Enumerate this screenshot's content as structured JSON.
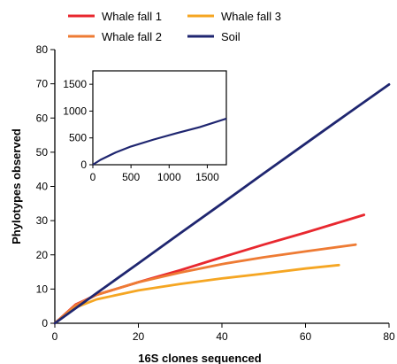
{
  "chart_data": [
    {
      "type": "line",
      "xlabel": "16S clones sequenced",
      "ylabel": "Phylotypes observed",
      "xlim": [
        0,
        80
      ],
      "ylim": [
        0,
        80
      ],
      "xticks": [
        0,
        20,
        40,
        60,
        80
      ],
      "yticks": [
        0,
        10,
        20,
        30,
        40,
        50,
        60,
        70,
        80
      ],
      "grid": false,
      "legend": "top",
      "series": [
        {
          "name": "Whale fall 1",
          "color": "#e8282f",
          "x": [
            0,
            5,
            10,
            20,
            30,
            40,
            50,
            60,
            70,
            74
          ],
          "y": [
            0,
            5.5,
            8.3,
            12.0,
            15.5,
            19.3,
            23.0,
            26.5,
            30.2,
            31.7
          ]
        },
        {
          "name": "Whale fall 2",
          "color": "#ee7b34",
          "x": [
            0,
            5,
            10,
            20,
            30,
            40,
            50,
            60,
            72
          ],
          "y": [
            0,
            5.3,
            8.3,
            12.0,
            14.8,
            17.3,
            19.3,
            21.0,
            23.0
          ]
        },
        {
          "name": "Whale fall 3",
          "color": "#f5a623",
          "x": [
            0,
            5,
            10,
            20,
            30,
            40,
            50,
            60,
            68
          ],
          "y": [
            0,
            4.6,
            7.0,
            9.6,
            11.5,
            13.1,
            14.5,
            16.0,
            17.0
          ]
        },
        {
          "name": "Soil",
          "color": "#1f2670",
          "x": [
            0,
            10,
            20,
            30,
            40,
            50,
            60,
            70,
            80
          ],
          "y": [
            0,
            8.8,
            17.5,
            26.3,
            35.0,
            43.8,
            52.5,
            61.2,
            69.8
          ]
        }
      ]
    },
    {
      "type": "line",
      "xlim": [
        0,
        1750
      ],
      "ylim": [
        0,
        1750
      ],
      "xticks": [
        0,
        500,
        1000,
        1500
      ],
      "yticks": [
        0,
        500,
        1000,
        1500
      ],
      "series": [
        {
          "name": "Soil",
          "color": "#1f2670",
          "x": [
            0,
            100,
            300,
            500,
            800,
            1100,
            1400,
            1750
          ],
          "y": [
            0,
            90,
            230,
            340,
            470,
            590,
            700,
            860
          ]
        }
      ]
    }
  ]
}
